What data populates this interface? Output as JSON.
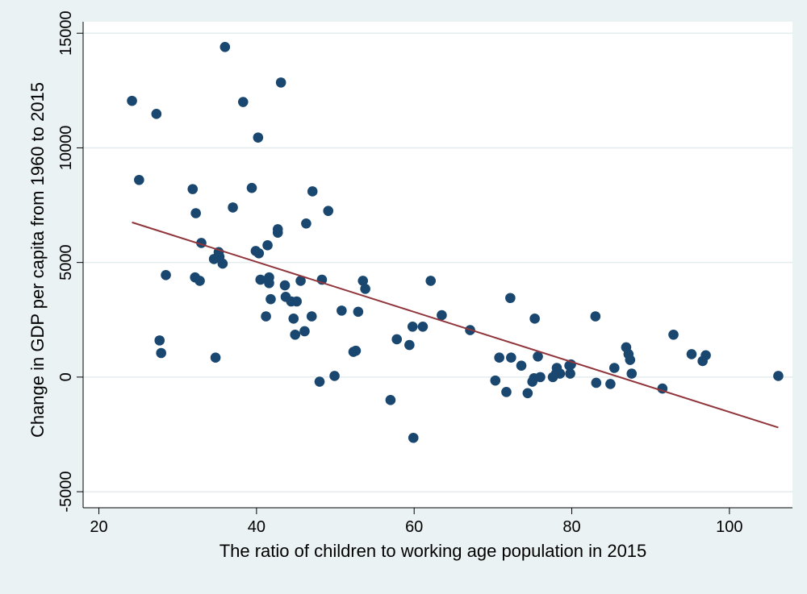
{
  "chart_data": {
    "type": "scatter",
    "title": "",
    "xlabel": "The ratio of children to working age population in 2015",
    "ylabel": "Change in GDP per capita from 1960 to 2015",
    "xlim": [
      18,
      108
    ],
    "ylim": [
      -5700,
      15500
    ],
    "xticks": [
      20,
      40,
      60,
      80,
      100
    ],
    "yticks": [
      -5000,
      0,
      5000,
      10000,
      15000
    ],
    "grid": "horizontal",
    "legend": "none",
    "colors": {
      "outer_background": "#eaf2f3",
      "plot_background": "#ffffff",
      "gridline": "#e3ecee",
      "point": "#1a476f",
      "fit_line": "#90353b"
    },
    "points": [
      [
        24.2,
        12050
      ],
      [
        25.1,
        8600
      ],
      [
        27.3,
        11480
      ],
      [
        27.7,
        1600
      ],
      [
        27.9,
        1050
      ],
      [
        28.5,
        4450
      ],
      [
        31.9,
        8200
      ],
      [
        32.2,
        4350
      ],
      [
        32.3,
        7150
      ],
      [
        32.8,
        4200
      ],
      [
        33.0,
        5850
      ],
      [
        34.6,
        5150
      ],
      [
        34.8,
        850
      ],
      [
        35.2,
        5450
      ],
      [
        35.3,
        5250
      ],
      [
        35.7,
        4950
      ],
      [
        36.0,
        14400
      ],
      [
        37.0,
        7400
      ],
      [
        38.3,
        12000
      ],
      [
        39.4,
        8250
      ],
      [
        39.9,
        5500
      ],
      [
        40.2,
        10450
      ],
      [
        40.3,
        5400
      ],
      [
        40.5,
        4250
      ],
      [
        41.2,
        2650
      ],
      [
        41.4,
        5750
      ],
      [
        41.6,
        4100
      ],
      [
        41.6,
        4350
      ],
      [
        41.8,
        3400
      ],
      [
        42.7,
        6300
      ],
      [
        42.7,
        6450
      ],
      [
        43.1,
        12850
      ],
      [
        43.6,
        4000
      ],
      [
        43.7,
        3500
      ],
      [
        44.4,
        3300
      ],
      [
        44.7,
        2550
      ],
      [
        44.9,
        1850
      ],
      [
        45.1,
        3300
      ],
      [
        45.6,
        4200
      ],
      [
        46.1,
        2000
      ],
      [
        46.3,
        6700
      ],
      [
        47.0,
        2650
      ],
      [
        47.1,
        8100
      ],
      [
        48.0,
        -200
      ],
      [
        48.3,
        4250
      ],
      [
        49.1,
        7250
      ],
      [
        49.9,
        50
      ],
      [
        50.8,
        2900
      ],
      [
        52.3,
        1100
      ],
      [
        52.6,
        1150
      ],
      [
        52.9,
        2850
      ],
      [
        53.5,
        4200
      ],
      [
        53.8,
        3850
      ],
      [
        57.0,
        -1000
      ],
      [
        57.8,
        1650
      ],
      [
        59.4,
        1400
      ],
      [
        59.8,
        2200
      ],
      [
        59.9,
        -2650
      ],
      [
        61.1,
        2200
      ],
      [
        62.1,
        4200
      ],
      [
        63.5,
        2700
      ],
      [
        67.1,
        2050
      ],
      [
        70.3,
        -150
      ],
      [
        70.8,
        850
      ],
      [
        71.7,
        -650
      ],
      [
        72.2,
        3450
      ],
      [
        72.3,
        850
      ],
      [
        73.6,
        500
      ],
      [
        74.4,
        -700
      ],
      [
        75.0,
        -200
      ],
      [
        75.2,
        -50
      ],
      [
        75.3,
        2550
      ],
      [
        75.7,
        900
      ],
      [
        76.0,
        0
      ],
      [
        77.6,
        0
      ],
      [
        78.0,
        150
      ],
      [
        78.1,
        400
      ],
      [
        78.5,
        150
      ],
      [
        79.7,
        500
      ],
      [
        79.8,
        150
      ],
      [
        79.9,
        550
      ],
      [
        83.0,
        2650
      ],
      [
        83.1,
        -250
      ],
      [
        84.9,
        -300
      ],
      [
        85.4,
        400
      ],
      [
        86.9,
        1300
      ],
      [
        87.2,
        1000
      ],
      [
        87.4,
        750
      ],
      [
        87.6,
        150
      ],
      [
        91.5,
        -500
      ],
      [
        92.9,
        1850
      ],
      [
        95.2,
        1000
      ],
      [
        96.6,
        700
      ],
      [
        97.0,
        950
      ],
      [
        106.2,
        50
      ]
    ],
    "fit_line": {
      "x": [
        24.2,
        106.2
      ],
      "y": [
        6750,
        -2200
      ]
    }
  }
}
